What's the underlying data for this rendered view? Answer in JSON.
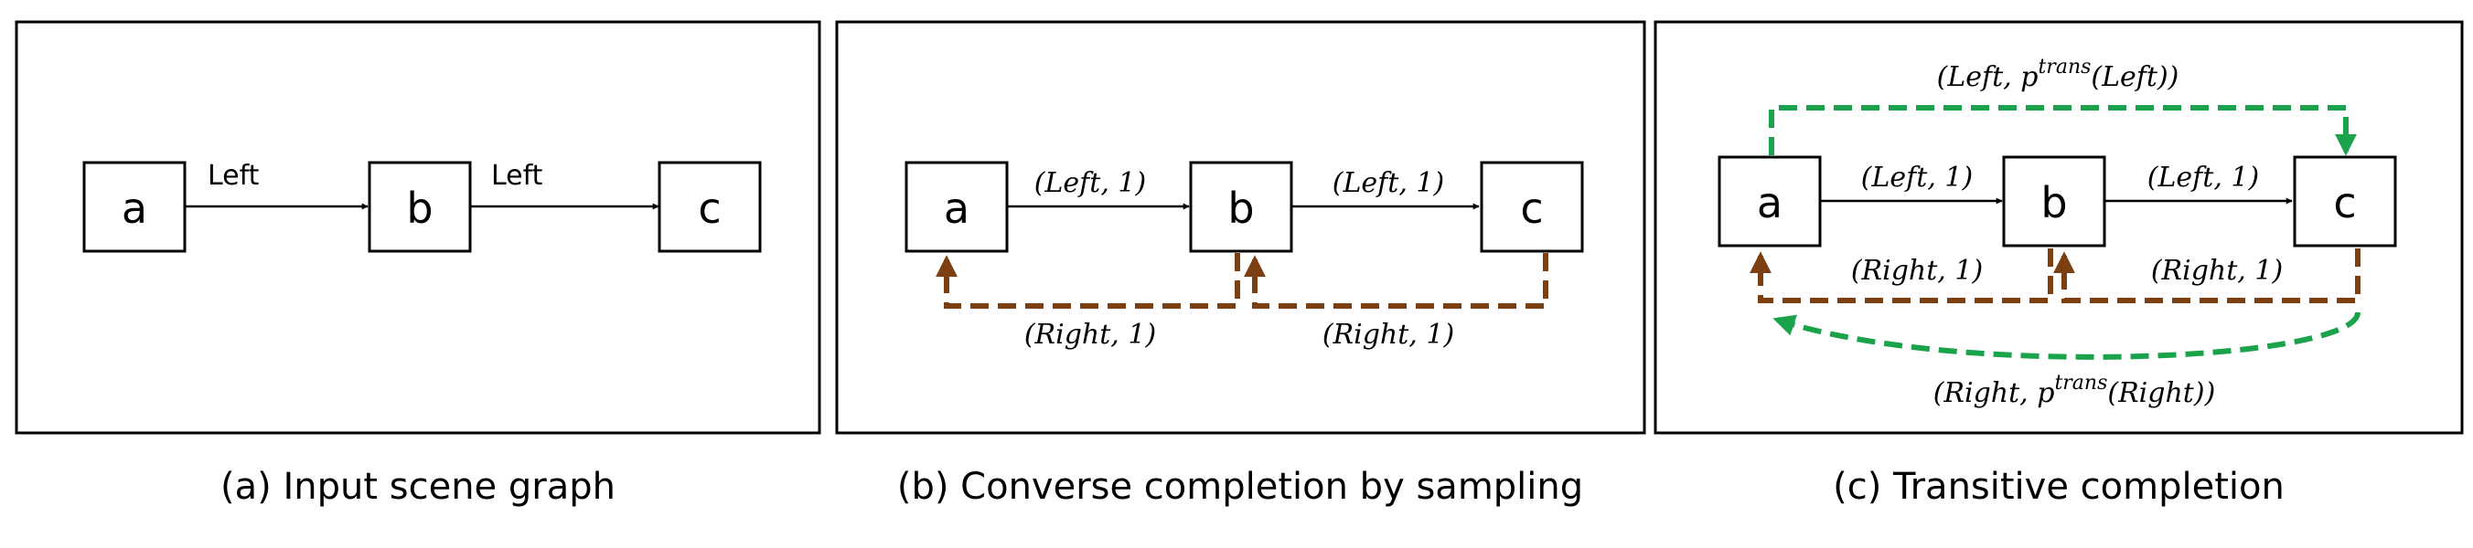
{
  "panels": [
    {
      "caption": "(a) Input scene graph",
      "nodes": [
        "a",
        "b",
        "c"
      ],
      "edge_labels": {
        "ab": "Left",
        "bc": "Left"
      }
    },
    {
      "caption": "(b) Converse completion by sampling",
      "nodes": [
        "a",
        "b",
        "c"
      ],
      "edge_labels": {
        "ab": "(Left, 1)",
        "bc": "(Left, 1)",
        "ba": "(Right, 1)",
        "cb": "(Right, 1)"
      }
    },
    {
      "caption": "(c) Transitive completion",
      "nodes": [
        "a",
        "b",
        "c"
      ],
      "edge_labels": {
        "ab": "(Left, 1)",
        "bc": "(Left, 1)",
        "ba": "(Right, 1)",
        "cb": "(Right, 1)"
      },
      "transitive_top": {
        "prefix": "(Left, p",
        "sup": "trans",
        "suffix": "(Left))"
      },
      "transitive_bottom": {
        "prefix": "(Right, p",
        "sup": "trans",
        "suffix": "(Right))"
      }
    }
  ],
  "colors": {
    "converse": "#7b3f12",
    "transitive": "#1aa34a",
    "base": "#000000"
  }
}
